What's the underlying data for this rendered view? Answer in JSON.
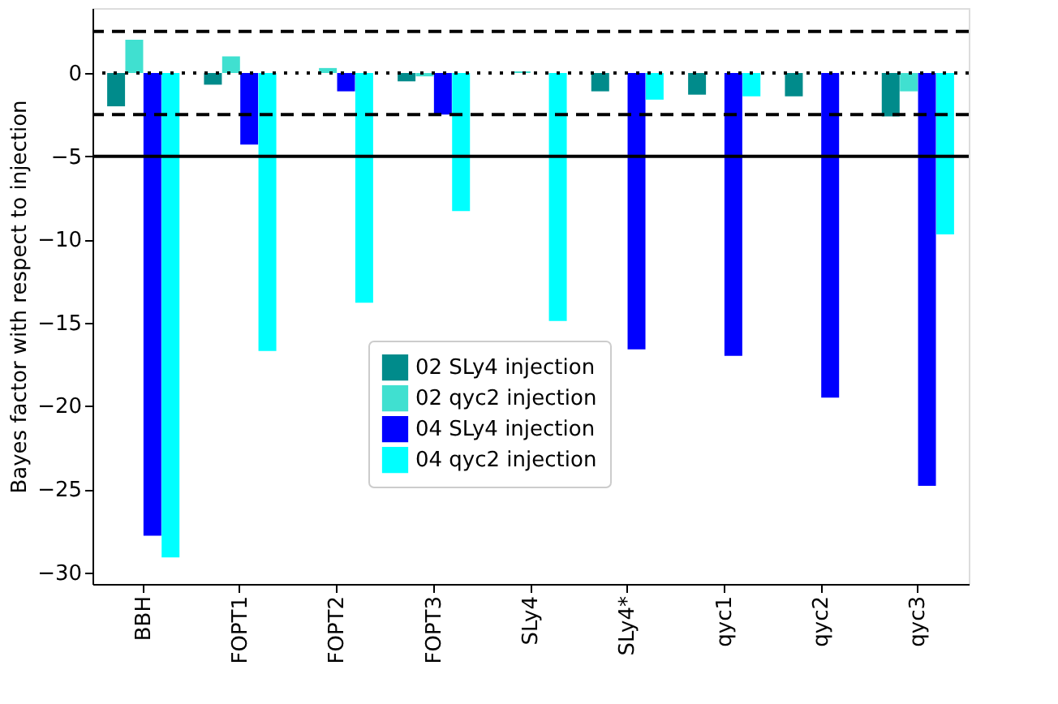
{
  "chart_data": {
    "type": "bar",
    "ylabel": "Bayes factor with respect to injection",
    "categories": [
      "BBH",
      "FOPT1",
      "FOPT2",
      "FOPT3",
      "SLy4",
      "SLy4*",
      "qyc1",
      "qyc2",
      "qyc3"
    ],
    "series": [
      {
        "name": "02 SLy4 injection",
        "color": "#008b8b",
        "values": [
          -2.0,
          -0.7,
          0.0,
          -0.5,
          0.0,
          -1.1,
          -1.3,
          -1.4,
          -2.6
        ]
      },
      {
        "name": "02 qyc2 injection",
        "color": "#40e0d0",
        "values": [
          2.0,
          1.0,
          0.3,
          -0.2,
          0.1,
          0.0,
          0.0,
          0.0,
          -1.1
        ]
      },
      {
        "name": "04 SLy4 injection",
        "color": "#0000ff",
        "values": [
          -27.8,
          -4.3,
          -1.1,
          -2.5,
          0.0,
          -16.6,
          -17.0,
          -19.5,
          -24.8
        ]
      },
      {
        "name": "04 qyc2 injection",
        "color": "#00ffff",
        "values": [
          -29.1,
          -16.7,
          -13.8,
          -8.3,
          -14.9,
          -1.6,
          -1.4,
          0.0,
          -9.7
        ]
      }
    ],
    "ylim": [
      -30.7,
      3.9
    ],
    "yticks": [
      -30,
      -25,
      -20,
      -15,
      -10,
      -5,
      0
    ],
    "ref_lines": [
      {
        "axis": "y",
        "value": 2.5,
        "line_style": "dashed",
        "color": "#000000"
      },
      {
        "axis": "y",
        "value": 0,
        "line_style": "dotted",
        "color": "#000000"
      },
      {
        "axis": "y",
        "value": -2.5,
        "line_style": "dashed",
        "color": "#000000"
      },
      {
        "axis": "y",
        "value": -5,
        "line_style": "solid",
        "color": "#000000"
      }
    ],
    "grid": false,
    "legend": "bottom"
  }
}
